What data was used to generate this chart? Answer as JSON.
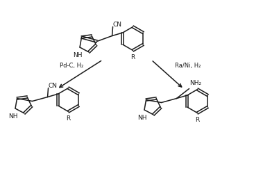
{
  "background_color": "#ffffff",
  "line_color": "#1a1a1a",
  "line_width": 1.1,
  "font_size": 6.5,
  "arrow_left_label": "Pd-C, H₂",
  "arrow_right_label": "Ra/Ni, H₂",
  "label_CN": "CN",
  "label_NH": "NH",
  "label_R": "R",
  "label_NH2": "NH₂"
}
